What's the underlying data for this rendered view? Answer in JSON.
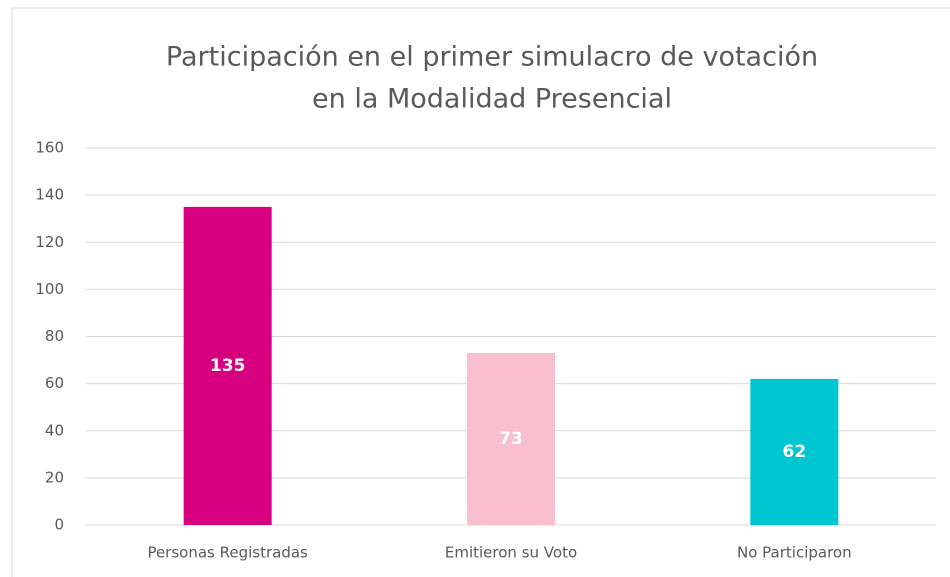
{
  "chart_data": {
    "type": "bar",
    "title": [
      "Participación en el primer simulacro de votación",
      "en la Modalidad Presencial"
    ],
    "categories": [
      "Personas Registradas",
      "Emitieron su Voto",
      "No Participaron"
    ],
    "values": [
      135,
      73,
      62
    ],
    "colors": [
      "#d6007e",
      "#f7c0cc",
      "#00c6d1"
    ],
    "ylim": [
      0,
      160
    ],
    "yticks": [
      0,
      20,
      40,
      60,
      80,
      100,
      120,
      140,
      160
    ],
    "grid": true
  }
}
